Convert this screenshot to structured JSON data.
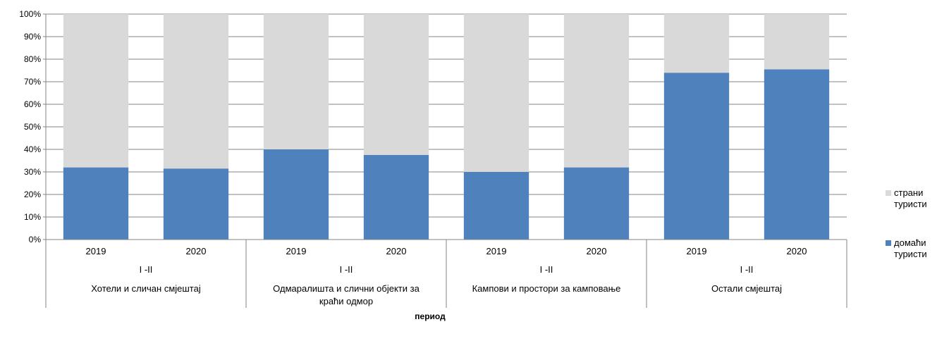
{
  "chart_data": {
    "type": "bar",
    "stacked": true,
    "percent_stacked": true,
    "categories": [
      "2019",
      "2020",
      "2019",
      "2020",
      "2019",
      "2020",
      "2019",
      "2020"
    ],
    "category_levels": {
      "period_labels": [
        "I -II",
        "I -II",
        "I -II",
        "I -II"
      ],
      "groups": [
        "Хотели и сличан смјештај",
        "Одмаралишта и слични објекти за краћи одмор",
        "Кампови и простори за камповање",
        "Остали смјештај"
      ]
    },
    "series": [
      {
        "name": "домаћи туристи",
        "color": "#4f81bd",
        "values": [
          32,
          31.5,
          40,
          37.5,
          30,
          32,
          74,
          75.5
        ]
      },
      {
        "name": "страни туристи",
        "color": "#d9d9d9",
        "values": [
          68,
          68.5,
          60,
          62.5,
          70,
          68,
          26,
          24.5
        ]
      }
    ],
    "ylim": [
      0,
      100
    ],
    "yticks": [
      "0%",
      "10%",
      "20%",
      "30%",
      "40%",
      "50%",
      "60%",
      "70%",
      "80%",
      "90%",
      "100%"
    ],
    "xlabel": "период",
    "ylabel": "",
    "grid": true,
    "legend_position": "right"
  },
  "legend": {
    "items": [
      {
        "label": "страни туристи",
        "color": "#d9d9d9"
      },
      {
        "label": "домаћи туристи",
        "color": "#4f81bd"
      }
    ]
  }
}
